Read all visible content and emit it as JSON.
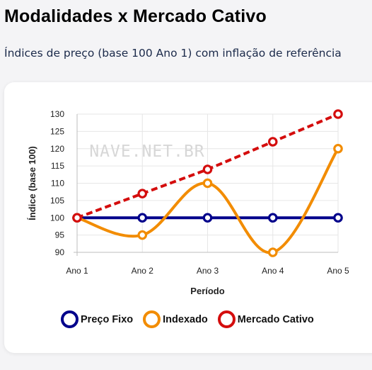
{
  "page": {
    "title": "Modalidades x Mercado Cativo",
    "subtitle": "Índices de preço (base 100 Ano 1) com inflação de referência"
  },
  "chart_data": {
    "type": "line",
    "categories": [
      "Ano 1",
      "Ano 2",
      "Ano 3",
      "Ano 4",
      "Ano 5"
    ],
    "xlabel": "Período",
    "ylabel": "Índice (base 100)",
    "ylim": [
      90,
      130
    ],
    "yticks": [
      90,
      95,
      100,
      105,
      110,
      115,
      120,
      125,
      130
    ],
    "grid": true,
    "legend_position": "bottom",
    "watermark": "NAVE.NET.BR",
    "series": [
      {
        "name": "Preço Fixo",
        "values": [
          100,
          100,
          100,
          100,
          100
        ],
        "color": "#00008b",
        "dashed": false,
        "smooth": false
      },
      {
        "name": "Indexado",
        "values": [
          100,
          95,
          110,
          90,
          120
        ],
        "color": "#f28c00",
        "dashed": false,
        "smooth": true
      },
      {
        "name": "Mercado Cativo",
        "values": [
          100,
          107,
          114,
          122,
          130
        ],
        "color": "#d40d0d",
        "dashed": true,
        "smooth": false
      }
    ]
  }
}
